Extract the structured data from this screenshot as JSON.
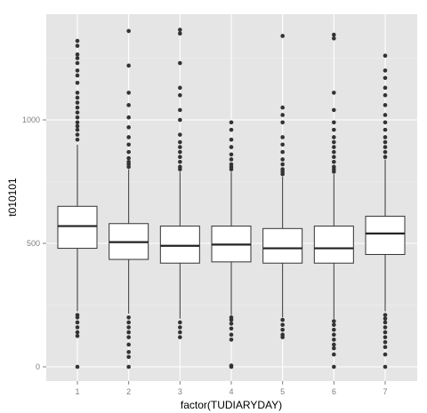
{
  "chart_data": {
    "type": "box",
    "xlabel": "factor(TUDIARYDAY)",
    "ylabel": "t010101",
    "categories": [
      "1",
      "2",
      "3",
      "4",
      "5",
      "6",
      "7"
    ],
    "ylim": [
      -60,
      1390
    ],
    "yticks": [
      0,
      500,
      1000
    ],
    "grid": true,
    "panel_color": "#e5e5e5",
    "grid_major_color": "#ffffff",
    "grid_minor_color": "#f2f2f2",
    "boxes": [
      {
        "category": "1",
        "whisker_low": 225,
        "q1": 480,
        "median": 570,
        "q3": 650,
        "whisker_high": 900,
        "outliers_low": [
          210,
          200,
          180,
          160,
          140,
          125,
          0
        ],
        "outliers_high": [
          920,
          940,
          960,
          975,
          990,
          1010,
          1030,
          1050,
          1070,
          1090,
          1110,
          1150,
          1180,
          1200,
          1230,
          1250,
          1265,
          1300,
          1320
        ]
      },
      {
        "category": "2",
        "whisker_low": 215,
        "q1": 435,
        "median": 505,
        "q3": 580,
        "whisker_high": 800,
        "outliers_low": [
          200,
          180,
          160,
          140,
          120,
          90,
          60,
          40,
          0
        ],
        "outliers_high": [
          810,
          820,
          830,
          845,
          870,
          900,
          930,
          970,
          1010,
          1060,
          1110,
          1220,
          1360
        ]
      },
      {
        "category": "3",
        "whisker_low": 195,
        "q1": 420,
        "median": 490,
        "q3": 570,
        "whisker_high": 790,
        "outliers_low": [
          180,
          160,
          140,
          120
        ],
        "outliers_high": [
          800,
          810,
          830,
          850,
          870,
          890,
          910,
          940,
          1000,
          1040,
          1100,
          1130,
          1230,
          1350,
          1365
        ]
      },
      {
        "category": "4",
        "whisker_low": 210,
        "q1": 425,
        "median": 495,
        "q3": 570,
        "whisker_high": 790,
        "outliers_low": [
          200,
          190,
          175,
          155,
          130,
          110,
          5,
          0
        ],
        "outliers_high": [
          800,
          810,
          820,
          840,
          860,
          890,
          920,
          960,
          990
        ]
      },
      {
        "category": "5",
        "whisker_low": 200,
        "q1": 420,
        "median": 480,
        "q3": 560,
        "whisker_high": 770,
        "outliers_low": [
          190,
          170,
          150,
          130,
          120
        ],
        "outliers_high": [
          780,
          790,
          800,
          820,
          840,
          870,
          900,
          930,
          990,
          1020,
          1050,
          1340
        ]
      },
      {
        "category": "6",
        "whisker_low": 195,
        "q1": 420,
        "median": 480,
        "q3": 570,
        "whisker_high": 780,
        "outliers_low": [
          185,
          170,
          150,
          130,
          110,
          90,
          75,
          50,
          0
        ],
        "outliers_high": [
          790,
          800,
          810,
          830,
          850,
          870,
          890,
          910,
          930,
          960,
          990,
          1040,
          1110,
          1330,
          1345
        ]
      },
      {
        "category": "7",
        "whisker_low": 225,
        "q1": 455,
        "median": 540,
        "q3": 610,
        "whisker_high": 840,
        "outliers_low": [
          210,
          195,
          180,
          160,
          140,
          120,
          100,
          80,
          50,
          0
        ],
        "outliers_high": [
          850,
          870,
          890,
          910,
          930,
          960,
          990,
          1020,
          1060,
          1100,
          1130,
          1170,
          1200,
          1260
        ]
      }
    ]
  }
}
